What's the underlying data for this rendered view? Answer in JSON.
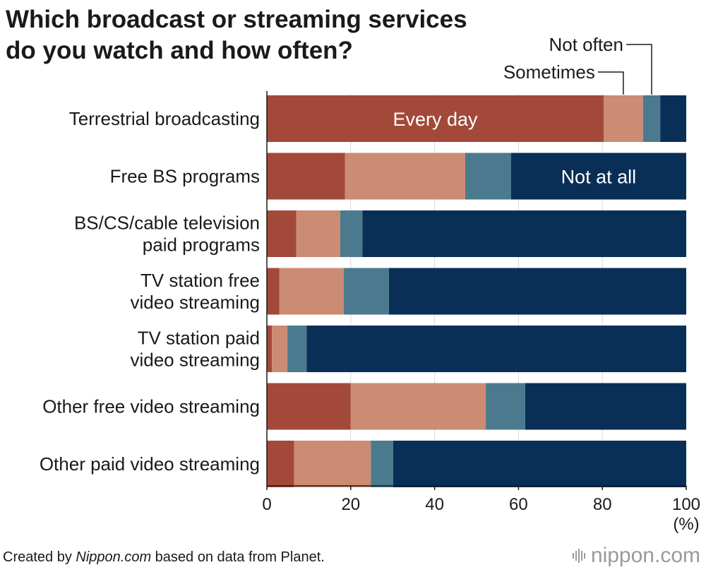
{
  "title": {
    "line1": "Which broadcast or streaming services",
    "line2": "do you watch and how often?"
  },
  "chart_data": {
    "type": "bar",
    "orientation": "horizontal",
    "stacked": true,
    "categories": [
      [
        "Terrestrial broadcasting"
      ],
      [
        "Free BS programs"
      ],
      [
        "BS/CS/cable television",
        "paid programs"
      ],
      [
        "TV station free",
        "video streaming"
      ],
      [
        "TV station paid",
        "video streaming"
      ],
      [
        "Other free video streaming"
      ],
      [
        "Other paid video streaming"
      ]
    ],
    "series": [
      {
        "name": "Every day",
        "color": "#a3493a",
        "values": [
          80.3,
          18.6,
          7.0,
          3.0,
          1.2,
          20.0,
          6.5
        ]
      },
      {
        "name": "Sometimes",
        "color": "#cc8b73",
        "values": [
          9.4,
          28.7,
          10.5,
          15.3,
          3.7,
          32.2,
          18.3
        ]
      },
      {
        "name": "Not often",
        "color": "#4b7a8e",
        "values": [
          4.1,
          10.9,
          5.3,
          10.8,
          4.6,
          9.4,
          5.3
        ]
      },
      {
        "name": "Not at all",
        "color": "#0a2f56",
        "values": [
          6.2,
          41.8,
          77.2,
          70.9,
          90.5,
          38.4,
          69.9
        ]
      }
    ],
    "inbar_labels": [
      {
        "text": "Every day",
        "series": 0,
        "category": 0
      },
      {
        "text": "Not at all",
        "series": 3,
        "category": 1
      }
    ],
    "callout_labels": [
      {
        "text": "Not often",
        "series": 2,
        "category": 0
      },
      {
        "text": "Sometimes",
        "series": 1,
        "category": 0
      }
    ],
    "xlim": [
      0,
      100
    ],
    "xticks": [
      "0",
      "20",
      "40",
      "60",
      "80",
      "100"
    ],
    "xunit": "(%)",
    "grid": true
  },
  "footer": {
    "prefix": "Created by ",
    "source": "Nippon.com",
    "suffix": " based on data from Planet."
  },
  "brand": {
    "name": "nippon",
    "tld": ".com"
  }
}
